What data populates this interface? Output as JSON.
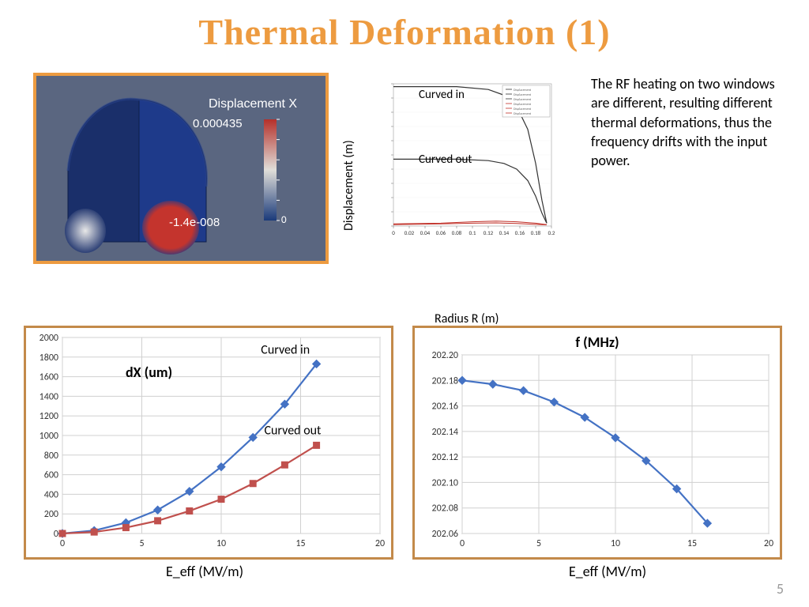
{
  "title": "Thermal Deformation (1)",
  "page_number": "5",
  "body_text": "The RF heating on two windows are different, resulting different thermal deformations, thus the frequency drifts with the input power.",
  "sim": {
    "label": "Displacement X",
    "colorbar_max": "0.000435",
    "colorbar_min": "-1.4e-008",
    "zero_label": "0",
    "bg": "#5a6680",
    "dome_color": "#1e3a8a",
    "red": "#c4342d",
    "white": "#e8e8e8",
    "cb_top": "#b5302a",
    "cb_mid": "#e0ded9",
    "cb_bot": "#1a3a7a"
  },
  "disp_plot": {
    "ylabel": "Displacement (m)",
    "xlabel": "Radius R (m)",
    "curve_in_label": "Curved in",
    "curve_out_label": "Curved out",
    "line_color": "#333333",
    "red_line": "#c03028",
    "xticks": [
      "0",
      "0.02",
      "0.04",
      "0.06",
      "0.08",
      "0.1",
      "0.12",
      "0.14",
      "0.16",
      "0.18",
      "0.2"
    ],
    "top_curve": [
      [
        0,
        0.98
      ],
      [
        0.4,
        0.98
      ],
      [
        0.6,
        0.96
      ],
      [
        0.7,
        0.92
      ],
      [
        0.78,
        0.84
      ],
      [
        0.85,
        0.68
      ],
      [
        0.9,
        0.44
      ],
      [
        0.94,
        0.18
      ],
      [
        0.97,
        0.02
      ]
    ],
    "mid_curve": [
      [
        0,
        0.47
      ],
      [
        0.4,
        0.47
      ],
      [
        0.6,
        0.46
      ],
      [
        0.7,
        0.44
      ],
      [
        0.78,
        0.4
      ],
      [
        0.85,
        0.32
      ],
      [
        0.9,
        0.21
      ],
      [
        0.94,
        0.09
      ],
      [
        0.97,
        0.02
      ]
    ],
    "low_curves": [
      [
        [
          0,
          0.015
        ],
        [
          0.3,
          0.02
        ],
        [
          0.5,
          0.03
        ],
        [
          0.65,
          0.035
        ],
        [
          0.78,
          0.03
        ],
        [
          0.9,
          0.02
        ],
        [
          0.97,
          0.01
        ]
      ],
      [
        [
          0,
          0.01
        ],
        [
          0.3,
          0.015
        ],
        [
          0.5,
          0.02
        ],
        [
          0.65,
          0.022
        ],
        [
          0.78,
          0.018
        ],
        [
          0.9,
          0.012
        ],
        [
          0.97,
          0.008
        ]
      ]
    ]
  },
  "dx_chart": {
    "title": "dX (um)",
    "bg": "#ffffff",
    "grid": "#d0d0d0",
    "xlim": [
      0,
      20
    ],
    "xtick_step": 5,
    "ylim": [
      0,
      2000
    ],
    "ytick_step": 200,
    "tick_fontsize": 12,
    "label_fontsize": 16,
    "xlabel": "E_eff (MV/m)",
    "series": [
      {
        "name": "Curved in",
        "color": "#4472c4",
        "marker": "diamond",
        "x": [
          0,
          2,
          4,
          6,
          8,
          10,
          12,
          14,
          16
        ],
        "y": [
          0,
          30,
          110,
          240,
          430,
          680,
          980,
          1320,
          1730
        ]
      },
      {
        "name": "Curved out",
        "color": "#c0504d",
        "marker": "square",
        "x": [
          0,
          2,
          4,
          6,
          8,
          10,
          12,
          14,
          16
        ],
        "y": [
          0,
          15,
          60,
          130,
          230,
          350,
          510,
          700,
          900
        ]
      }
    ]
  },
  "f_chart": {
    "title": "f (MHz)",
    "bg": "#ffffff",
    "grid": "#d0d0d0",
    "xlim": [
      0,
      20
    ],
    "xtick_step": 5,
    "ylim": [
      202.06,
      202.2
    ],
    "ytick_step": 0.02,
    "tick_fontsize": 12,
    "xlabel": "E_eff (MV/m)",
    "color": "#4472c4",
    "marker": "diamond",
    "x": [
      0,
      2,
      4,
      6,
      8,
      10,
      12,
      14,
      16
    ],
    "y": [
      202.18,
      202.177,
      202.172,
      202.163,
      202.151,
      202.135,
      202.117,
      202.095,
      202.068
    ]
  }
}
